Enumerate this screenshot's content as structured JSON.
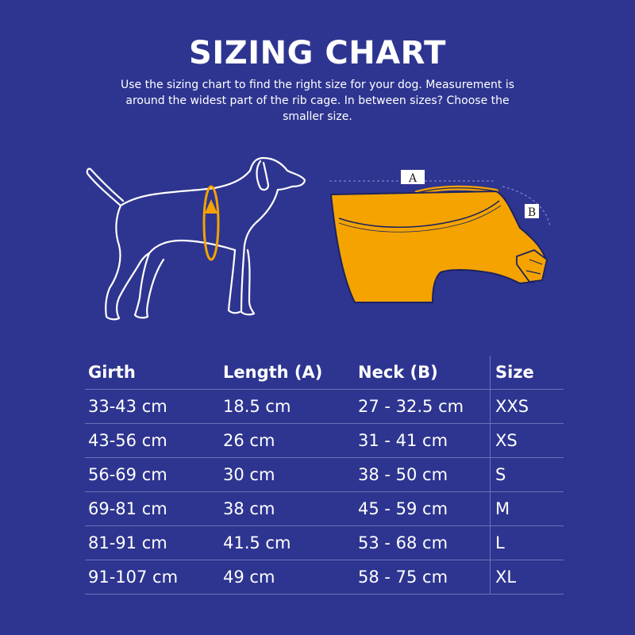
{
  "header": {
    "title": "SIZING CHART",
    "subtitle": "Use the sizing chart to find the right size for your dog. Measurement is around the widest part of the rib cage. In between sizes? Choose the smaller size."
  },
  "illustrations": {
    "dog_icon": "dog-outline-with-girth-arrow",
    "vest_icon": "orange-vest-with-measurements",
    "label_a": "A",
    "label_b": "B"
  },
  "colors": {
    "background": "#2e3590",
    "accent_orange": "#f4a300",
    "line": "#6b72b8"
  },
  "table": {
    "headers": [
      "Girth",
      "Length (A)",
      "Neck (B)",
      "Size"
    ],
    "rows": [
      [
        "33-43 cm",
        "18.5 cm",
        "27 - 32.5 cm",
        "XXS"
      ],
      [
        "43-56 cm",
        "26 cm",
        "31 - 41 cm",
        "XS"
      ],
      [
        "56-69 cm",
        "30 cm",
        "38 - 50 cm",
        "S"
      ],
      [
        "69-81 cm",
        "38 cm",
        "45 - 59 cm",
        "M"
      ],
      [
        "81-91 cm",
        "41.5 cm",
        "53 - 68 cm",
        "L"
      ],
      [
        "91-107 cm",
        "49 cm",
        "58 - 75 cm",
        "XL"
      ]
    ]
  }
}
